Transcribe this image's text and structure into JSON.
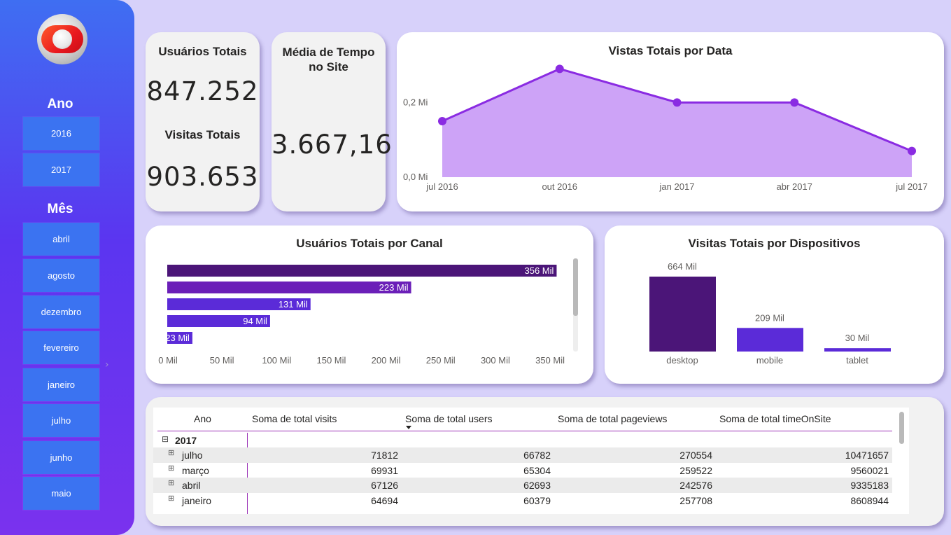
{
  "sidebar": {
    "ano_title": "Ano",
    "ano_items": [
      "2016",
      "2017"
    ],
    "mes_title": "Mês",
    "mes_items": [
      "abril",
      "agosto",
      "dezembro",
      "fevereiro",
      "janeiro",
      "julho",
      "junho",
      "maio"
    ]
  },
  "kpis": {
    "users_title": "Usuários Totais",
    "users_value": "847.252",
    "visits_title": "Visitas Totais",
    "visits_value": "903.653",
    "time_title_line1": "Média de Tempo",
    "time_title_line2": "no Site",
    "time_value": "3.667,16"
  },
  "colors": {
    "line": "#8a2be2",
    "area": "#cda3f7",
    "bar_dark": "#4b1578",
    "bar_mid": "#6b1fb8",
    "bar_light": "#5b2bd8"
  },
  "chart_data": [
    {
      "type": "area",
      "title": "Vistas Totais por Data",
      "x": [
        "jul 2016",
        "out 2016",
        "jan 2017",
        "abr 2017",
        "jul 2017"
      ],
      "y": [
        0.15,
        0.29,
        0.2,
        0.2,
        0.07
      ],
      "yticks": [
        "0,0 Mi",
        "0,2 Mi"
      ],
      "ylim": [
        0,
        0.3
      ]
    },
    {
      "type": "bar",
      "orientation": "horizontal",
      "title": "Usuários Totais por Canal",
      "values": [
        356,
        223,
        131,
        94,
        23
      ],
      "labels": [
        "356 Mil",
        "223 Mil",
        "131 Mil",
        "94 Mil",
        "23 Mil"
      ],
      "xticks": [
        "0 Mil",
        "50 Mil",
        "100 Mil",
        "150 Mil",
        "200 Mil",
        "250 Mil",
        "300 Mil",
        "350 Mil"
      ],
      "xlim": [
        0,
        357
      ]
    },
    {
      "type": "bar",
      "title": "Visitas Totais por Dispositivos",
      "categories": [
        "desktop",
        "mobile",
        "tablet"
      ],
      "values": [
        664,
        209,
        30
      ],
      "labels": [
        "664 Mil",
        "209 Mil",
        "30 Mil"
      ]
    }
  ],
  "table": {
    "headers": [
      "Ano",
      "Soma de total visits",
      "Soma de total users",
      "Soma de total pageviews",
      "Soma de total timeOnSite"
    ],
    "group": "2017",
    "group_expander": "⊟",
    "row_expander": "⊞",
    "rows": [
      {
        "name": "julho",
        "visits": "71812",
        "users": "66782",
        "pageviews": "270554",
        "time": "10471657"
      },
      {
        "name": "março",
        "visits": "69931",
        "users": "65304",
        "pageviews": "259522",
        "time": "9560021"
      },
      {
        "name": "abril",
        "visits": "67126",
        "users": "62693",
        "pageviews": "242576",
        "time": "9335183"
      },
      {
        "name": "janeiro",
        "visits": "64694",
        "users": "60379",
        "pageviews": "257708",
        "time": "8608944"
      }
    ]
  }
}
